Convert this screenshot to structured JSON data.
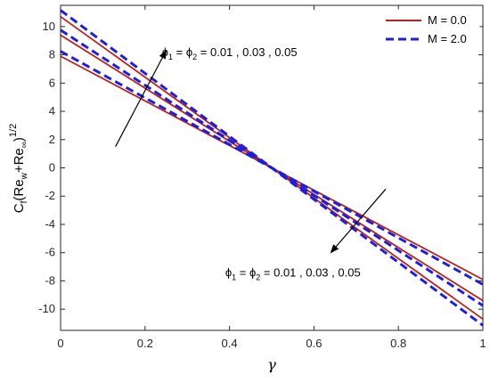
{
  "chart_data": {
    "type": "line",
    "xlabel": "γ",
    "ylabel": "C_f(Re_w+Re_∞)^{1/2}",
    "xlim": [
      0,
      1
    ],
    "ylim": [
      -11.5,
      11.5
    ],
    "xticks": [
      "0",
      "0.2",
      "0.4",
      "0.6",
      "0.8",
      "1"
    ],
    "xtick_values": [
      0,
      0.2,
      0.4,
      0.6,
      0.8,
      1
    ],
    "yticks": [
      "-10",
      "-8",
      "-6",
      "-4",
      "-2",
      "0",
      "2",
      "4",
      "6",
      "8",
      "10"
    ],
    "ytick_values": [
      -10,
      -8,
      -6,
      -4,
      -2,
      0,
      2,
      4,
      6,
      8,
      10
    ],
    "grid": false,
    "legend_position": "top-right",
    "legend": [
      {
        "name": "M = 0.0",
        "color": "#b22222",
        "style": "solid"
      },
      {
        "name": "M = 2.0",
        "color": "#1f1fd6",
        "style": "dashed"
      }
    ],
    "series": [
      {
        "legend": "M = 0.0",
        "line": 1,
        "x": [
          0,
          1
        ],
        "y": [
          7.9,
          -7.9
        ]
      },
      {
        "legend": "M = 0.0",
        "line": 2,
        "x": [
          0,
          1
        ],
        "y": [
          9.4,
          -9.4
        ]
      },
      {
        "legend": "M = 0.0",
        "line": 3,
        "x": [
          0,
          1
        ],
        "y": [
          10.7,
          -10.7
        ]
      },
      {
        "legend": "M = 2.0",
        "line": 1,
        "x": [
          0,
          1
        ],
        "y": [
          8.25,
          -8.25
        ]
      },
      {
        "legend": "M = 2.0",
        "line": 2,
        "x": [
          0,
          1
        ],
        "y": [
          9.75,
          -9.75
        ]
      },
      {
        "legend": "M = 2.0",
        "line": 3,
        "x": [
          0,
          1
        ],
        "y": [
          11.15,
          -11.15
        ]
      }
    ],
    "annotations": [
      {
        "text_prefix": "ϕ",
        "sub1": "1",
        "mid": " = ϕ",
        "sub2": "2",
        "rest": " = 0.01 , 0.03 , 0.05",
        "x": 0.24,
        "y": 7.9,
        "arrow_from": [
          0.13,
          1.5
        ],
        "arrow_to": [
          0.25,
          8.3
        ]
      },
      {
        "text_prefix": "ϕ",
        "sub1": "1",
        "mid": " = ϕ",
        "sub2": "2",
        "rest": " = 0.01 , 0.03 , 0.05",
        "x": 0.39,
        "y": -7.7,
        "arrow_from": [
          0.77,
          -1.5
        ],
        "arrow_to": [
          0.64,
          -6.0
        ]
      }
    ]
  }
}
